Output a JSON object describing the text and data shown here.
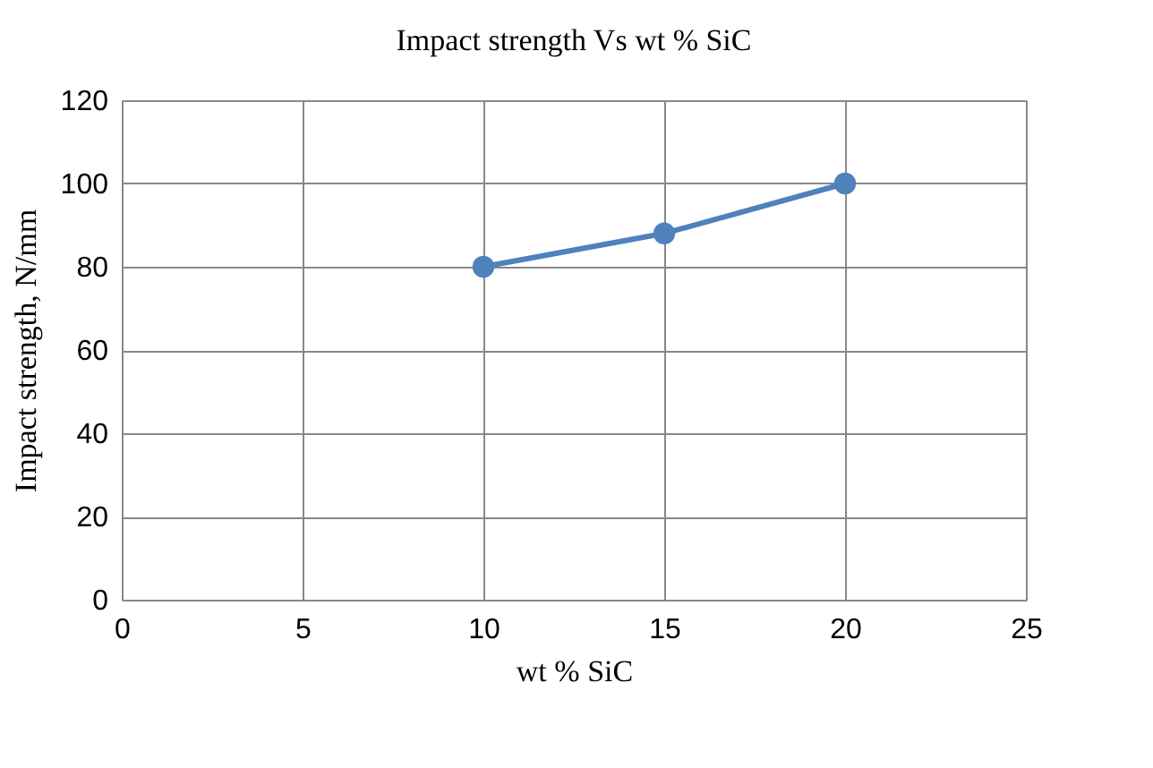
{
  "chart_data": {
    "type": "line",
    "title": "Impact strength Vs wt % SiC",
    "xlabel": "wt % SiC",
    "ylabel": "Impact strength,  N/mm",
    "x": [
      10,
      15,
      20
    ],
    "series": [
      {
        "color": "#4f81bd",
        "values": [
          80,
          88,
          100
        ]
      }
    ],
    "xlim": [
      0,
      25
    ],
    "xticks": [
      0,
      5,
      10,
      15,
      20,
      25
    ],
    "ylim": [
      0,
      120
    ],
    "yticks": [
      0,
      20,
      40,
      60,
      80,
      100,
      120
    ],
    "grid": true,
    "marker": "circle",
    "line_style": "solid",
    "legend": false
  }
}
